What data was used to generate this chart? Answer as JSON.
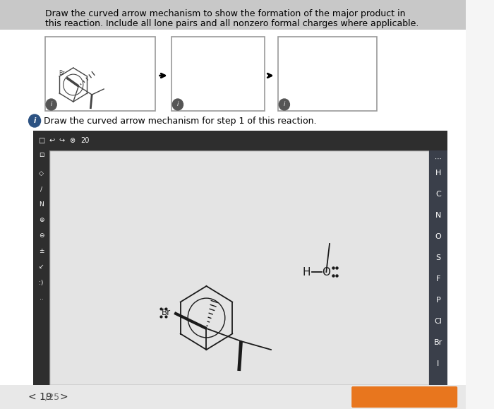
{
  "page_bg": "#f5f5f5",
  "white_bg": "#ffffff",
  "title_line1": "Draw the curved arrow mechanism to show the formation of the major product in",
  "title_line2": "this reaction. Include all lone pairs and all nonzero formal charges where applicable.",
  "step_text": "Draw the curved arrow mechanism for step 1 of this reaction.",
  "toolbar_dark": "#2e2e2e",
  "canvas_bg": "#e8e8e8",
  "right_panel_bg": "#3a3f4a",
  "elements": [
    "H",
    "C",
    "N",
    "O",
    "S",
    "F",
    "P",
    "Cl",
    "Br",
    "I"
  ],
  "orange_btn": "#e8761e",
  "info_circle_color": "#555555",
  "info_circle_blue": "#2c5282"
}
